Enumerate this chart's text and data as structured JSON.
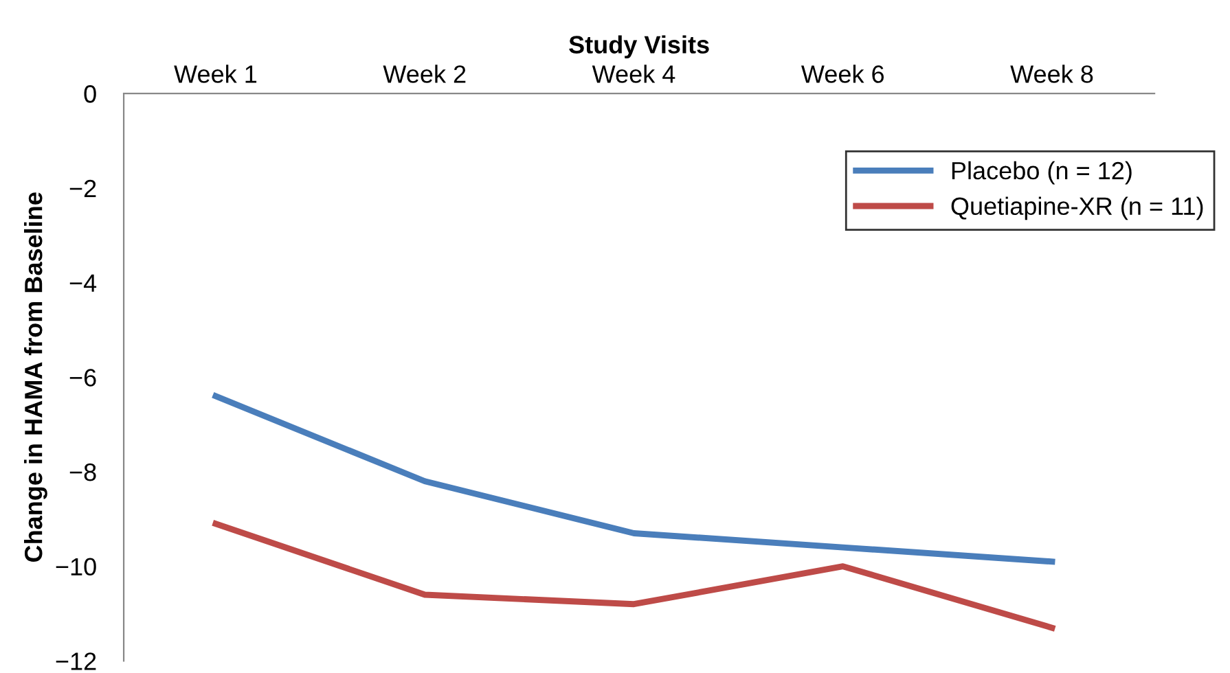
{
  "chart_data": {
    "type": "line",
    "xlabel": "Study Visits",
    "ylabel": "Change in HAMA from Baseline",
    "categories": [
      "Week 1",
      "Week 2",
      "Week 4",
      "Week 6",
      "Week 8"
    ],
    "series": [
      {
        "name": "Placebo (n = 12)",
        "color": "#4a7ebb",
        "values": [
          -6.4,
          -8.2,
          -9.3,
          -9.6,
          -9.9
        ]
      },
      {
        "name": "Quetiapine-XR (n = 11)",
        "color": "#be4b48",
        "values": [
          -9.1,
          -10.6,
          -10.8,
          -10.0,
          -11.3
        ]
      }
    ],
    "ylim": [
      -12,
      0
    ],
    "yticks": [
      0,
      -2,
      -4,
      -6,
      -8,
      -10,
      -12
    ],
    "grid": false,
    "legend": "top right",
    "marker": "none",
    "line_style": "solid"
  }
}
